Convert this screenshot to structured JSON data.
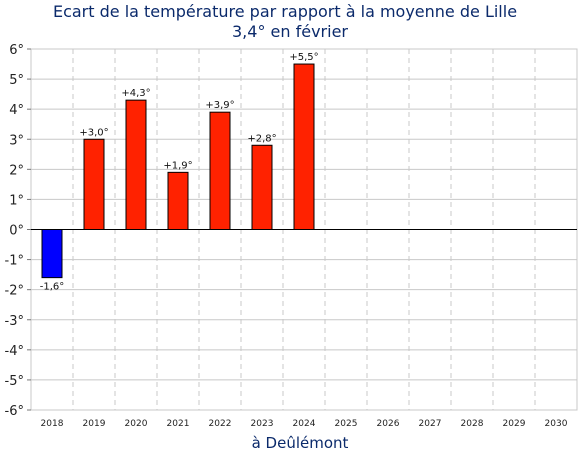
{
  "chart_data": {
    "type": "bar",
    "title": "Ecart de la température par rapport à la moyenne de Lille",
    "subtitle": "3,4° en février",
    "xlabel": "à Deûlémont",
    "ylabel": "",
    "ylim": [
      -6,
      6
    ],
    "yticks": [
      "-6°",
      "-5°",
      "-4°",
      "-3°",
      "-2°",
      "-1°",
      "0°",
      "1°",
      "2°",
      "3°",
      "4°",
      "5°",
      "6°"
    ],
    "categories": [
      "2018",
      "2019",
      "2020",
      "2021",
      "2022",
      "2023",
      "2024",
      "2025",
      "2026",
      "2027",
      "2028",
      "2029",
      "2030"
    ],
    "values": [
      -1.6,
      3.0,
      4.3,
      1.9,
      3.9,
      2.8,
      5.5,
      null,
      null,
      null,
      null,
      null,
      null
    ],
    "data_labels": [
      "-1,6°",
      "+3,0°",
      "+4,3°",
      "+1,9°",
      "+3,9°",
      "+2,8°",
      "+5,5°",
      "",
      "",
      "",
      "",
      "",
      ""
    ],
    "colors": {
      "positive": "#ff2200",
      "negative": "#0000ff",
      "title": "#0b2a6b"
    },
    "grid": true
  }
}
